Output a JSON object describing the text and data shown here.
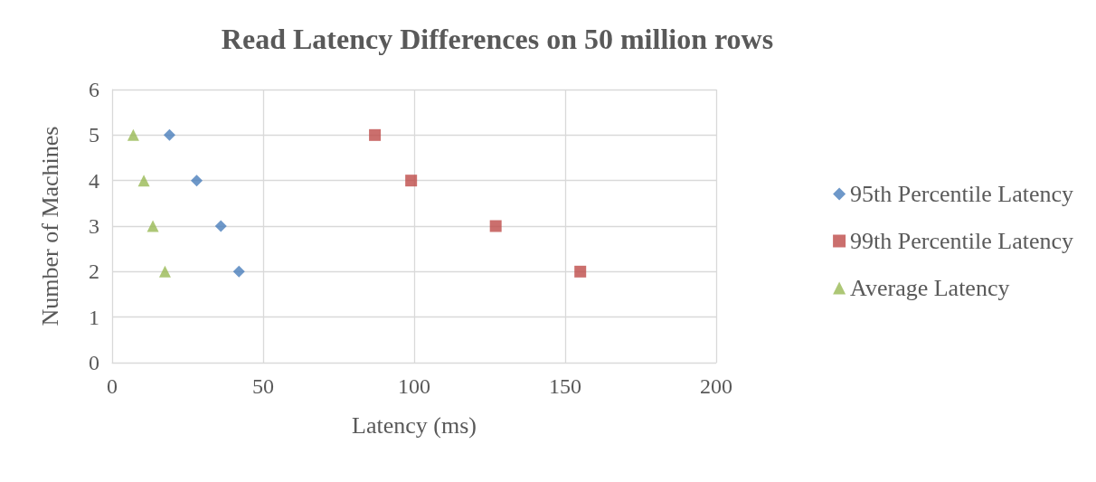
{
  "chart_data": {
    "type": "scatter",
    "title": "Read Latency Differences on 50 million rows",
    "xlabel": "Latency (ms)",
    "ylabel": "Number of Machines",
    "xlim": [
      0,
      200
    ],
    "xticks": [
      0,
      50,
      100,
      150,
      200
    ],
    "ylim": [
      0,
      6
    ],
    "yticks": [
      0,
      1,
      2,
      3,
      4,
      5,
      6
    ],
    "grid": true,
    "legend": "right",
    "series": [
      {
        "name": "95th Percentile Latency",
        "color": "#4a7ebb",
        "marker": "diamond",
        "x": [
          19,
          28,
          36,
          42
        ],
        "values": [
          5,
          4,
          3,
          2
        ]
      },
      {
        "name": "99th Percentile Latency",
        "color": "#be4b48",
        "marker": "square",
        "x": [
          87,
          99,
          127,
          155
        ],
        "values": [
          5,
          4,
          3,
          2
        ]
      },
      {
        "name": "Average Latency",
        "color": "#98b954",
        "marker": "triangle",
        "x": [
          7,
          10.5,
          13.5,
          17.5
        ],
        "values": [
          5,
          4,
          3,
          2
        ]
      }
    ]
  }
}
